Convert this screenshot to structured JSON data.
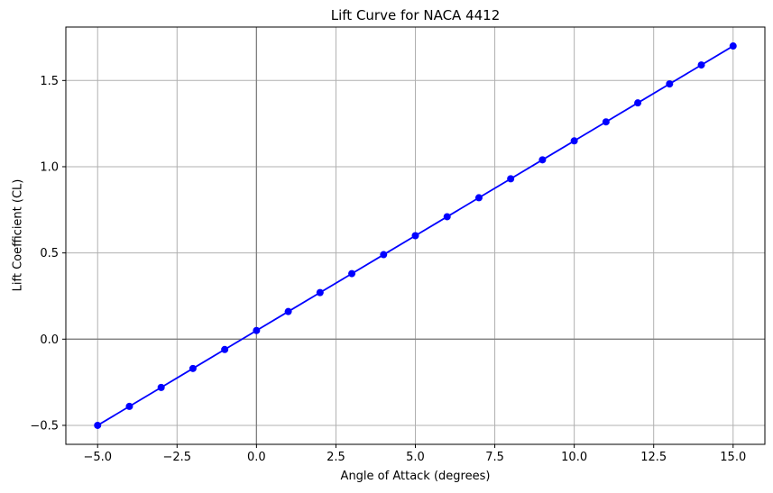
{
  "chart_data": {
    "type": "line",
    "title": "Lift Curve for NACA 4412",
    "xlabel": "Angle of Attack (degrees)",
    "ylabel": "Lift Coefficient (CL)",
    "x": [
      -5,
      -4,
      -3,
      -2,
      -1,
      0,
      1,
      2,
      3,
      4,
      5,
      6,
      7,
      8,
      9,
      10,
      11,
      12,
      13,
      14,
      15
    ],
    "y": [
      -0.5,
      -0.39,
      -0.28,
      -0.17,
      -0.06,
      0.05,
      0.16,
      0.27,
      0.38,
      0.49,
      0.6,
      0.71,
      0.82,
      0.93,
      1.04,
      1.15,
      1.26,
      1.37,
      1.48,
      1.59,
      1.7
    ],
    "xlim": [
      -6,
      16
    ],
    "ylim": [
      -0.61,
      1.81
    ],
    "xticks": {
      "values": [
        -5,
        -2.5,
        0,
        2.5,
        5,
        7.5,
        10,
        12.5,
        15
      ],
      "labels": [
        "−5.0",
        "−2.5",
        "0.0",
        "2.5",
        "5.0",
        "7.5",
        "10.0",
        "12.5",
        "15.0"
      ]
    },
    "yticks": {
      "values": [
        -0.5,
        0,
        0.5,
        1,
        1.5
      ],
      "labels": [
        "−0.5",
        "0.0",
        "0.5",
        "1.0",
        "1.5"
      ]
    },
    "grid": true,
    "zero_lines": true,
    "legend": "none",
    "style": {
      "line_color": "#0000ff",
      "marker": "circle",
      "marker_color": "#0000ff",
      "marker_radius": 4,
      "line_width": 1.8,
      "grid_color": "#b0b0b0",
      "zero_line_color": "#808080",
      "spine_color": "#000000",
      "tick_color": "#000000",
      "text_color": "#000000",
      "background": "#ffffff"
    }
  }
}
